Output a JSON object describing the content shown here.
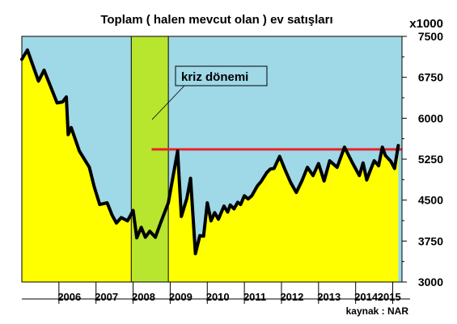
{
  "chart_data": {
    "type": "area",
    "title": "Toplam ( halen mevcut olan ) ev satışları",
    "unit_label": "x1000",
    "source": "kaynak : NAR",
    "x_ticks": [
      "2006",
      "2007",
      "2008",
      "2009",
      "2010",
      "2011",
      "2012",
      "2013",
      "2014",
      "2015"
    ],
    "y_ticks": [
      "7500",
      "6750",
      "6000",
      "5250",
      "4500",
      "3750",
      "3000"
    ],
    "ylim": [
      3000,
      7500
    ],
    "xlim": [
      2005.0,
      2015.25
    ],
    "crisis": {
      "label": "kriz dönemi",
      "start": 2007.95,
      "end": 2008.95
    },
    "reference_line": {
      "value": 5430,
      "start": 2008.5,
      "end": 2015.25
    },
    "colors": {
      "above": "#9fd8e6",
      "below": "#ffff00",
      "crisis": "#b8e62e",
      "line": "#000000",
      "reference": "#e8222a",
      "tick_text": "#000000"
    },
    "series": [
      {
        "x": [
          2005.0,
          2005.15,
          2005.45,
          2005.6,
          2005.95,
          2006.1,
          2006.2,
          2006.25,
          2006.33,
          2006.55,
          2006.82,
          2006.95,
          2007.1,
          2007.3,
          2007.43,
          2007.55,
          2007.68,
          2007.85,
          2008.0,
          2008.1,
          2008.22,
          2008.33,
          2008.45,
          2008.6,
          2008.75,
          2008.95,
          2009.2,
          2009.3,
          2009.45,
          2009.55,
          2009.68,
          2009.8,
          2009.9,
          2010.0,
          2010.1,
          2010.2,
          2010.3,
          2010.45,
          2010.55,
          2010.62,
          2010.72,
          2010.82,
          2010.9,
          2011.0,
          2011.1,
          2011.2,
          2011.35,
          2011.45,
          2011.6,
          2011.7,
          2011.8,
          2011.95,
          2012.1,
          2012.25,
          2012.4,
          2012.55,
          2012.7,
          2012.85,
          2013.0,
          2013.15,
          2013.3,
          2013.5,
          2013.7,
          2013.9,
          2014.1,
          2014.2,
          2014.3,
          2014.4,
          2014.5,
          2014.62,
          2014.72,
          2014.8,
          2014.95,
          2015.05,
          2015.15
        ],
        "values": [
          7080,
          7250,
          6680,
          6880,
          6280,
          6300,
          6390,
          5700,
          5830,
          5400,
          5100,
          4750,
          4420,
          4450,
          4230,
          4080,
          4180,
          4120,
          4310,
          3810,
          4000,
          3820,
          3930,
          3820,
          4100,
          4450,
          5400,
          4200,
          4530,
          4900,
          3520,
          3850,
          3840,
          4450,
          4120,
          4270,
          4150,
          4390,
          4280,
          4410,
          4340,
          4460,
          4420,
          4580,
          4520,
          4580,
          4760,
          4840,
          5000,
          5070,
          5080,
          5300,
          5050,
          4820,
          4640,
          4850,
          5100,
          4950,
          5170,
          4850,
          5220,
          5100,
          5470,
          5200,
          4950,
          5180,
          4870,
          5050,
          5220,
          5130,
          5470,
          5320,
          5210,
          5080,
          5500
        ]
      }
    ],
    "grid": false,
    "legend": "none"
  }
}
